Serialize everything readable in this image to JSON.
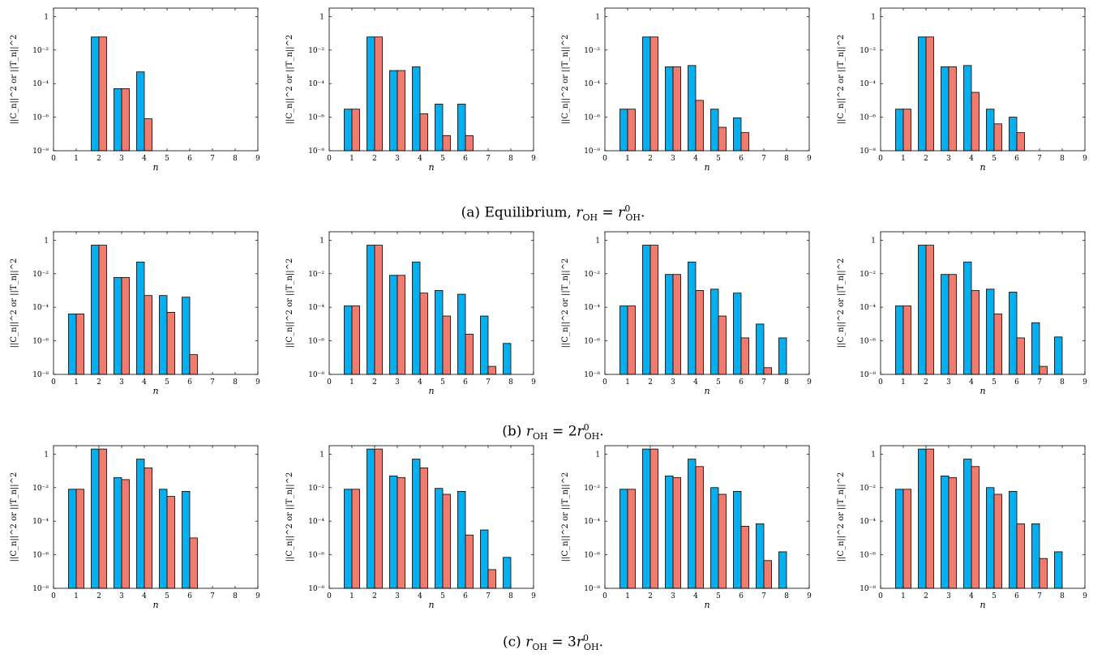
{
  "colors": {
    "c": "#00b0ef",
    "t": "#f07c70",
    "axis": "#000000"
  },
  "axes": {
    "xlabel": "n",
    "ylabel": "||C_n||^2 or ||T_n||^2",
    "xticks": [
      "0",
      "1",
      "2",
      "3",
      "4",
      "5",
      "6",
      "7",
      "8",
      "9"
    ],
    "ytick_labels": [
      "10⁻⁸",
      "10⁻⁶",
      "10⁻⁴",
      "10⁻²",
      "1"
    ]
  },
  "captions": [
    {
      "label": "(a) Equilibrium,",
      "var": "r",
      "sub": "OH",
      "eq": "=",
      "rhs_coef": "",
      "rhs_var": "r",
      "rhs_sup": "0",
      "rhs_sub": "OH",
      "end": "."
    },
    {
      "label": "(b)",
      "var": "r",
      "sub": "OH",
      "eq": "=",
      "rhs_coef": "2",
      "rhs_var": "r",
      "rhs_sup": "0",
      "rhs_sub": "OH",
      "end": "."
    },
    {
      "label": "(c)",
      "var": "r",
      "sub": "OH",
      "eq": "=",
      "rhs_coef": "3",
      "rhs_var": "r",
      "rhs_sup": "0",
      "rhs_sub": "OH",
      "end": "."
    }
  ],
  "chart_data": [
    {
      "type": "bar",
      "xlim": [
        0,
        9
      ],
      "ylim_log10": [
        -8,
        0.5
      ],
      "yscale": "log",
      "series": [
        {
          "key": "c",
          "n": [
            2,
            3,
            4
          ],
          "values": [
            0.06,
            5e-05,
            0.0005
          ]
        },
        {
          "key": "t",
          "n": [
            2,
            3,
            4
          ],
          "values": [
            0.06,
            5e-05,
            8e-07
          ]
        }
      ]
    },
    {
      "type": "bar",
      "xlim": [
        0,
        9
      ],
      "ylim_log10": [
        -8,
        0.5
      ],
      "yscale": "log",
      "series": [
        {
          "key": "c",
          "n": [
            1,
            2,
            3,
            4,
            5,
            6
          ],
          "values": [
            3e-06,
            0.06,
            0.0006,
            0.001,
            6e-06,
            6e-06
          ]
        },
        {
          "key": "t",
          "n": [
            1,
            2,
            3,
            4,
            5,
            6
          ],
          "values": [
            3e-06,
            0.06,
            0.0006,
            1.6e-06,
            8e-08,
            8e-08
          ]
        }
      ]
    },
    {
      "type": "bar",
      "xlim": [
        0,
        9
      ],
      "ylim_log10": [
        -8,
        0.5
      ],
      "yscale": "log",
      "series": [
        {
          "key": "c",
          "n": [
            1,
            2,
            3,
            4,
            5,
            6
          ],
          "values": [
            3e-06,
            0.06,
            0.001,
            0.0012,
            3e-06,
            9e-07
          ]
        },
        {
          "key": "t",
          "n": [
            1,
            2,
            3,
            4,
            5,
            6
          ],
          "values": [
            3e-06,
            0.06,
            0.001,
            1e-05,
            2.5e-07,
            1.2e-07
          ]
        }
      ]
    },
    {
      "type": "bar",
      "xlim": [
        0,
        9
      ],
      "ylim_log10": [
        -8,
        0.5
      ],
      "yscale": "log",
      "series": [
        {
          "key": "c",
          "n": [
            1,
            2,
            3,
            4,
            5,
            6
          ],
          "values": [
            3e-06,
            0.06,
            0.001,
            0.0012,
            3e-06,
            1e-06
          ]
        },
        {
          "key": "t",
          "n": [
            1,
            2,
            3,
            4,
            5,
            6
          ],
          "values": [
            3e-06,
            0.06,
            0.001,
            3e-05,
            4e-07,
            1.2e-07
          ]
        }
      ]
    },
    {
      "type": "bar",
      "xlim": [
        0,
        9
      ],
      "ylim_log10": [
        -8,
        0.5
      ],
      "yscale": "log",
      "series": [
        {
          "key": "c",
          "n": [
            1,
            2,
            3,
            4,
            5,
            6
          ],
          "values": [
            4e-05,
            0.5,
            0.006,
            0.05,
            0.0005,
            0.0004
          ]
        },
        {
          "key": "t",
          "n": [
            1,
            2,
            3,
            4,
            5,
            6
          ],
          "values": [
            4e-05,
            0.5,
            0.006,
            0.0005,
            5e-05,
            1.5e-07
          ]
        }
      ]
    },
    {
      "type": "bar",
      "xlim": [
        0,
        9
      ],
      "ylim_log10": [
        -8,
        0.5
      ],
      "yscale": "log",
      "series": [
        {
          "key": "c",
          "n": [
            1,
            2,
            3,
            4,
            5,
            6,
            7,
            8
          ],
          "values": [
            0.00012,
            0.5,
            0.008,
            0.05,
            0.001,
            0.0006,
            3e-05,
            7e-07
          ]
        },
        {
          "key": "t",
          "n": [
            1,
            2,
            3,
            4,
            5,
            6,
            7
          ],
          "values": [
            0.00012,
            0.5,
            0.008,
            0.0007,
            3e-05,
            2.5e-06,
            3e-08
          ]
        }
      ]
    },
    {
      "type": "bar",
      "xlim": [
        0,
        9
      ],
      "ylim_log10": [
        -8,
        0.5
      ],
      "yscale": "log",
      "series": [
        {
          "key": "c",
          "n": [
            1,
            2,
            3,
            4,
            5,
            6,
            7,
            8
          ],
          "values": [
            0.00012,
            0.5,
            0.009,
            0.05,
            0.0012,
            0.0007,
            1e-05,
            1.5e-06
          ]
        },
        {
          "key": "t",
          "n": [
            1,
            2,
            3,
            4,
            5,
            6,
            7
          ],
          "values": [
            0.00012,
            0.5,
            0.009,
            0.001,
            3e-05,
            1.5e-06,
            2.5e-08
          ]
        }
      ]
    },
    {
      "type": "bar",
      "xlim": [
        0,
        9
      ],
      "ylim_log10": [
        -8,
        0.5
      ],
      "yscale": "log",
      "series": [
        {
          "key": "c",
          "n": [
            1,
            2,
            3,
            4,
            5,
            6,
            7,
            8
          ],
          "values": [
            0.00012,
            0.5,
            0.009,
            0.05,
            0.0012,
            0.0008,
            1.2e-05,
            1.7e-06
          ]
        },
        {
          "key": "t",
          "n": [
            1,
            2,
            3,
            4,
            5,
            6,
            7
          ],
          "values": [
            0.00012,
            0.5,
            0.009,
            0.001,
            4e-05,
            1.5e-06,
            3e-08
          ]
        }
      ]
    },
    {
      "type": "bar",
      "xlim": [
        0,
        9
      ],
      "ylim_log10": [
        -8,
        0.5
      ],
      "yscale": "log",
      "series": [
        {
          "key": "c",
          "n": [
            1,
            2,
            3,
            4,
            5,
            6
          ],
          "values": [
            0.008,
            2.0,
            0.04,
            0.5,
            0.008,
            0.006
          ]
        },
        {
          "key": "t",
          "n": [
            1,
            2,
            3,
            4,
            5,
            6
          ],
          "values": [
            0.008,
            2.0,
            0.03,
            0.15,
            0.003,
            1e-05
          ]
        }
      ]
    },
    {
      "type": "bar",
      "xlim": [
        0,
        9
      ],
      "ylim_log10": [
        -8,
        0.5
      ],
      "yscale": "log",
      "series": [
        {
          "key": "c",
          "n": [
            1,
            2,
            3,
            4,
            5,
            6,
            7,
            8
          ],
          "values": [
            0.008,
            2.0,
            0.05,
            0.5,
            0.009,
            0.006,
            3e-05,
            7e-07
          ]
        },
        {
          "key": "t",
          "n": [
            1,
            2,
            3,
            4,
            5,
            6,
            7
          ],
          "values": [
            0.008,
            2.0,
            0.04,
            0.15,
            0.004,
            1.5e-05,
            1.3e-07
          ]
        }
      ]
    },
    {
      "type": "bar",
      "xlim": [
        0,
        9
      ],
      "ylim_log10": [
        -8,
        0.5
      ],
      "yscale": "log",
      "series": [
        {
          "key": "c",
          "n": [
            1,
            2,
            3,
            4,
            5,
            6,
            7,
            8
          ],
          "values": [
            0.008,
            2.0,
            0.05,
            0.5,
            0.01,
            0.006,
            7e-05,
            1.5e-06
          ]
        },
        {
          "key": "t",
          "n": [
            1,
            2,
            3,
            4,
            5,
            6,
            7
          ],
          "values": [
            0.008,
            2.0,
            0.04,
            0.18,
            0.004,
            5e-05,
            4.5e-07
          ]
        }
      ]
    },
    {
      "type": "bar",
      "xlim": [
        0,
        9
      ],
      "ylim_log10": [
        -8,
        0.5
      ],
      "yscale": "log",
      "series": [
        {
          "key": "c",
          "n": [
            1,
            2,
            3,
            4,
            5,
            6,
            7,
            8
          ],
          "values": [
            0.008,
            2.0,
            0.05,
            0.5,
            0.01,
            0.006,
            7e-05,
            1.5e-06
          ]
        },
        {
          "key": "t",
          "n": [
            1,
            2,
            3,
            4,
            5,
            6,
            7
          ],
          "values": [
            0.008,
            2.0,
            0.04,
            0.18,
            0.004,
            7e-05,
            6e-07
          ]
        }
      ]
    }
  ]
}
